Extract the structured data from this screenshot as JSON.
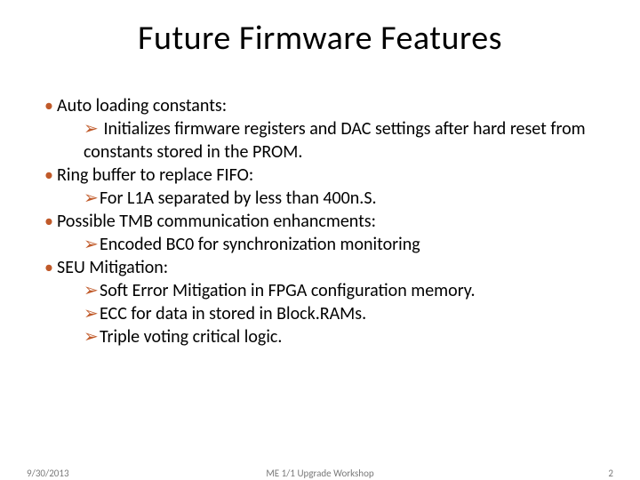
{
  "title": "Future Firmware Features",
  "colors": {
    "bullet_accent": "#c05a2a",
    "text": "#000000",
    "footer_text": "#7a7a7a",
    "background": "#ffffff"
  },
  "typography": {
    "title_fontsize": 38,
    "body_fontsize": 20,
    "footer_fontsize": 11
  },
  "bullets": [
    {
      "level": 0,
      "text": "Auto loading constants:"
    },
    {
      "level": 1,
      "text": " Initializes firmware registers and DAC settings after hard reset from constants stored in the PROM."
    },
    {
      "level": 0,
      "text": "Ring buffer to replace FIFO:"
    },
    {
      "level": 1,
      "text": "For L1A separated by less than 400n.S."
    },
    {
      "level": 0,
      "text": "Possible TMB communication enhancments:"
    },
    {
      "level": 1,
      "text": "Encoded BC0 for synchronization monitoring"
    },
    {
      "level": 0,
      "text": "SEU Mitigation:"
    },
    {
      "level": 1,
      "text": "Soft Error Mitigation in FPGA configuration memory."
    },
    {
      "level": 1,
      "text": "ECC for data in stored in Block.RAMs."
    },
    {
      "level": 1,
      "text": "Triple voting critical logic."
    }
  ],
  "markers": {
    "level0": "•",
    "level1": "➢"
  },
  "footer": {
    "date": "9/30/2013",
    "center": "ME 1/1 Upgrade Workshop",
    "page": "2"
  }
}
